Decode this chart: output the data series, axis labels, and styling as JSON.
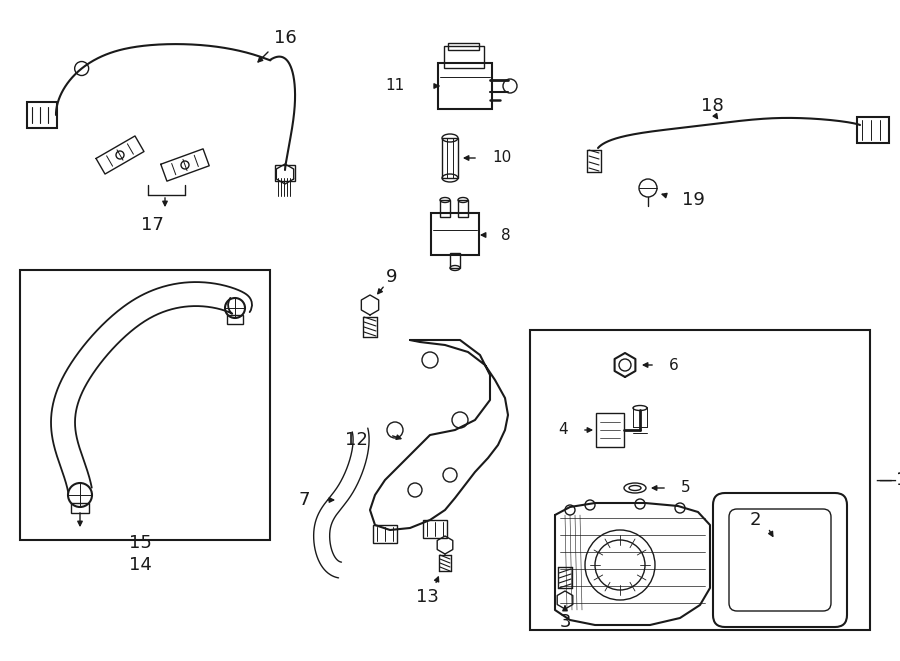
{
  "bg_color": "#ffffff",
  "line_color": "#1a1a1a",
  "lw": 1.0,
  "fig_width": 9.0,
  "fig_height": 6.61,
  "dpi": 100
}
